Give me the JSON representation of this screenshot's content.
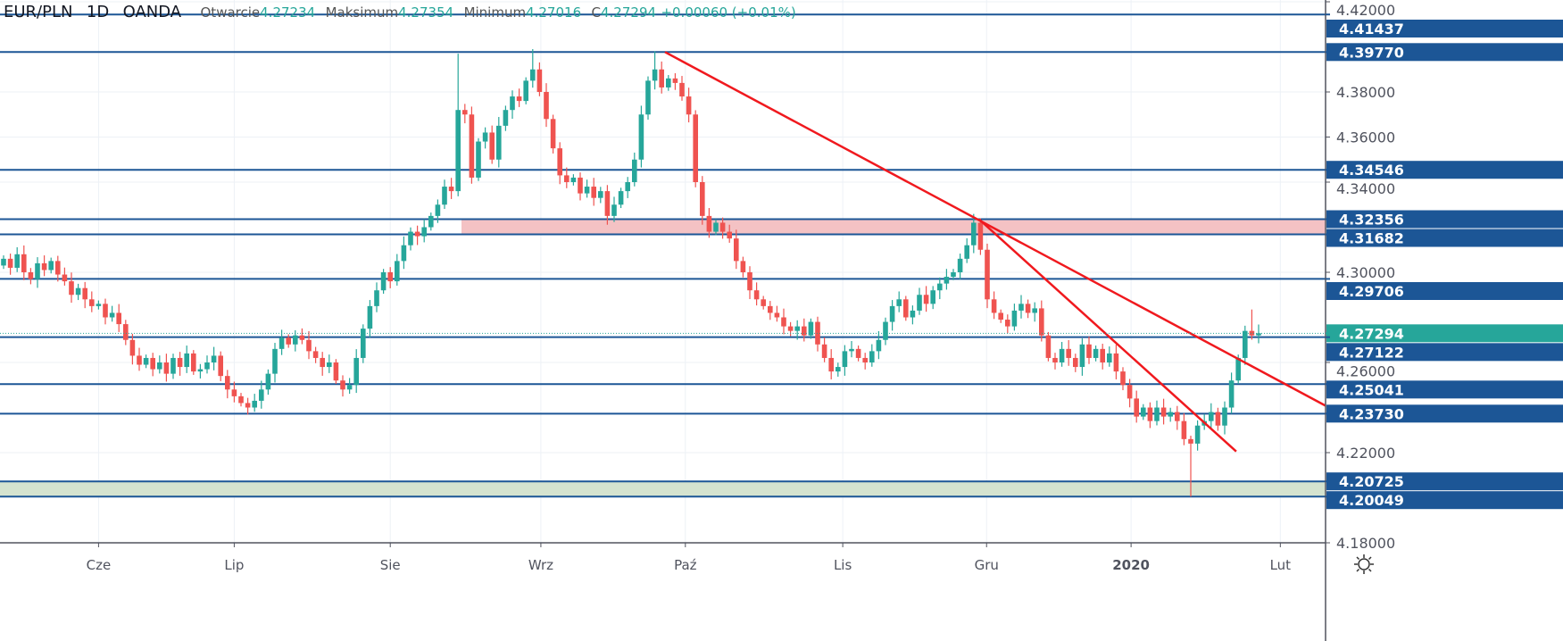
{
  "header": {
    "symbol": "EUR/PLN",
    "interval": "1D",
    "exchange": "OANDA",
    "open_label": "Otwarcie",
    "open": "4.27234",
    "high_label": "Maksimum",
    "high": "4.27354",
    "low_label": "Minimum",
    "low": "4.27016",
    "close_label": "C",
    "close": "4.27294",
    "change": "+0.00060 (+0.01%)"
  },
  "colors": {
    "up": "#26a69a",
    "down": "#ef5350",
    "level": "#1c5696",
    "trend": "#f0191e",
    "resistance_zone": "#f4c2c4",
    "support_zone": "#d5e3cf",
    "grid": "#edf1f6"
  },
  "chart_data": {
    "type": "candlestick",
    "title": "EUR/PLN 1D OANDA",
    "ylim": [
      4.177,
      4.4205
    ],
    "closes": [
      4.306,
      4.302,
      4.308,
      4.3,
      4.297,
      4.304,
      4.301,
      4.305,
      4.299,
      4.296,
      4.29,
      4.293,
      4.288,
      4.285,
      4.286,
      4.28,
      4.282,
      4.277,
      4.27,
      4.263,
      4.259,
      4.262,
      4.257,
      4.26,
      4.255,
      4.262,
      4.258,
      4.264,
      4.256,
      4.257,
      4.26,
      4.263,
      4.254,
      4.248,
      4.245,
      4.242,
      4.24,
      4.243,
      4.248,
      4.255,
      4.266,
      4.271,
      4.268,
      4.272,
      4.27,
      4.265,
      4.262,
      4.258,
      4.26,
      4.252,
      4.248,
      4.25,
      4.262,
      4.275,
      4.285,
      4.292,
      4.3,
      4.296,
      4.305,
      4.312,
      4.318,
      4.316,
      4.32,
      4.325,
      4.33,
      4.338,
      4.336,
      4.372,
      4.37,
      4.342,
      4.358,
      4.362,
      4.35,
      4.365,
      4.372,
      4.378,
      4.376,
      4.385,
      4.39,
      4.38,
      4.368,
      4.355,
      4.343,
      4.34,
      4.342,
      4.335,
      4.338,
      4.333,
      4.336,
      4.325,
      4.33,
      4.336,
      4.34,
      4.35,
      4.37,
      4.385,
      4.39,
      4.382,
      4.386,
      4.384,
      4.378,
      4.37,
      4.34,
      4.325,
      4.318,
      4.322,
      4.318,
      4.315,
      4.305,
      4.3,
      4.292,
      4.288,
      4.285,
      4.282,
      4.28,
      4.276,
      4.274,
      4.276,
      4.272,
      4.278,
      4.268,
      4.262,
      4.256,
      4.258,
      4.265,
      4.266,
      4.262,
      4.26,
      4.265,
      4.27,
      4.278,
      4.285,
      4.288,
      4.28,
      4.283,
      4.29,
      4.286,
      4.292,
      4.295,
      4.298,
      4.3,
      4.306,
      4.312,
      4.322,
      4.31,
      4.288,
      4.282,
      4.279,
      4.276,
      4.283,
      4.286,
      4.282,
      4.284,
      4.272,
      4.262,
      4.26,
      4.266,
      4.262,
      4.258,
      4.268,
      4.262,
      4.266,
      4.26,
      4.264,
      4.256,
      4.25,
      4.244,
      4.236,
      4.24,
      4.234,
      4.24,
      4.236,
      4.238,
      4.234,
      4.226,
      4.224,
      4.232,
      4.234,
      4.238,
      4.232,
      4.24,
      4.252,
      4.262,
      4.274,
      4.272,
      4.27294
    ],
    "first_open": 4.303,
    "wick_overrides": [
      {
        "bar": 67,
        "high": 4.397
      },
      {
        "bar": 78,
        "high": 4.399
      },
      {
        "bar": 96,
        "high": 4.398
      },
      {
        "bar": 175,
        "low": 4.2005
      },
      {
        "bar": 184,
        "high": 4.2835
      }
    ],
    "levels": [
      4.41437,
      4.3977,
      4.34546,
      4.32356,
      4.31682,
      4.29706,
      4.27122,
      4.25041,
      4.2373,
      4.20725,
      4.20049
    ],
    "level_labels": [
      "4.41437",
      "4.39770",
      "4.34546",
      "4.32356",
      "4.31682",
      "4.29706",
      "4.27122",
      "4.25041",
      "4.23730",
      "4.20725",
      "4.20049"
    ],
    "zones": [
      {
        "name": "resistance-zone",
        "from": 4.31682,
        "to": 4.32356,
        "start_bar": 67.5
      },
      {
        "name": "support-zone",
        "from": 4.20049,
        "to": 4.20725,
        "start_bar": -1
      }
    ],
    "trendlines": [
      {
        "from_bar": 97.5,
        "from_price": 4.3977,
        "to_bar": 195,
        "to_price": 4.2406
      },
      {
        "from_bar": 143.8,
        "from_price": 4.3235,
        "to_bar": 181.7,
        "to_price": 4.2205
      }
    ],
    "last_price": 4.27294,
    "last_price_label": "4.27294",
    "y_ticks": [
      4.18,
      4.22,
      4.26,
      4.3,
      4.34,
      4.36,
      4.38,
      4.42
    ],
    "y_tick_labels": [
      "4.18000",
      "4.22000",
      "4.26000",
      "4.30000",
      "4.34000",
      "4.36000",
      "4.38000",
      "4.42000"
    ],
    "x_ticks": [
      {
        "bar": 14,
        "label": "Cze"
      },
      {
        "bar": 34,
        "label": "Lip"
      },
      {
        "bar": 57,
        "label": "Sie"
      },
      {
        "bar": 79.2,
        "label": "Wrz"
      },
      {
        "bar": 100.5,
        "label": "Paź"
      },
      {
        "bar": 123.7,
        "label": "Lis"
      },
      {
        "bar": 144.9,
        "label": "Gru"
      },
      {
        "bar": 166.2,
        "label": "2020",
        "bold": true
      },
      {
        "bar": 188.2,
        "label": "Lut"
      }
    ]
  }
}
